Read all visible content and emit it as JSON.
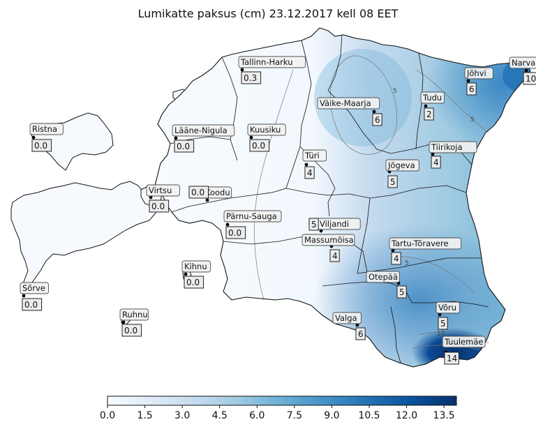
{
  "title": "Lumikatte paksus (cm) 23.12.2017 kell 08 EET",
  "colorbar": {
    "min": 0,
    "max": 14,
    "ticks": [
      "0.0",
      "1.5",
      "3.0",
      "4.5",
      "6.0",
      "7.5",
      "9.0",
      "10.5",
      "12.0",
      "13.5"
    ],
    "colors": [
      "#f7fbff",
      "#deebf7",
      "#c6dbef",
      "#9ecae1",
      "#6baed6",
      "#4292c6",
      "#2171b5",
      "#08519c",
      "#08306b"
    ]
  },
  "contour_labels": [
    "5",
    "5",
    "5",
    "10"
  ],
  "stations": [
    {
      "name": "Tallinn-Harku",
      "value": "0.3"
    },
    {
      "name": "Väike-Maarja",
      "value": "6"
    },
    {
      "name": "Jõhvi",
      "value": "6"
    },
    {
      "name": "Narva",
      "value": "10"
    },
    {
      "name": "Tudu",
      "value": "2"
    },
    {
      "name": "Ristna",
      "value": "0.0"
    },
    {
      "name": "Lääne-Nigula",
      "value": "0.0"
    },
    {
      "name": "Kuusiku",
      "value": "0.0"
    },
    {
      "name": "Türi",
      "value": "4"
    },
    {
      "name": "Jõgeva",
      "value": "5"
    },
    {
      "name": "Tiirikoja",
      "value": "4"
    },
    {
      "name": "Virtsu",
      "value": "0.0"
    },
    {
      "name": "Koodu",
      "value": "0.0"
    },
    {
      "name": "Pärnu-Sauga",
      "value": "0.0"
    },
    {
      "name": "Viljandi",
      "value": "5"
    },
    {
      "name": "Massumõisa",
      "value": "4"
    },
    {
      "name": "Tartu-Tõravere",
      "value": "4"
    },
    {
      "name": "Kihnu",
      "value": "0.0"
    },
    {
      "name": "Sõrve",
      "value": "0.0"
    },
    {
      "name": "Otepää",
      "value": "5"
    },
    {
      "name": "Ruhnu",
      "value": "0.0"
    },
    {
      "name": "Võru",
      "value": "5"
    },
    {
      "name": "Valga",
      "value": "6"
    },
    {
      "name": "Tuulemäe",
      "value": "14"
    }
  ]
}
